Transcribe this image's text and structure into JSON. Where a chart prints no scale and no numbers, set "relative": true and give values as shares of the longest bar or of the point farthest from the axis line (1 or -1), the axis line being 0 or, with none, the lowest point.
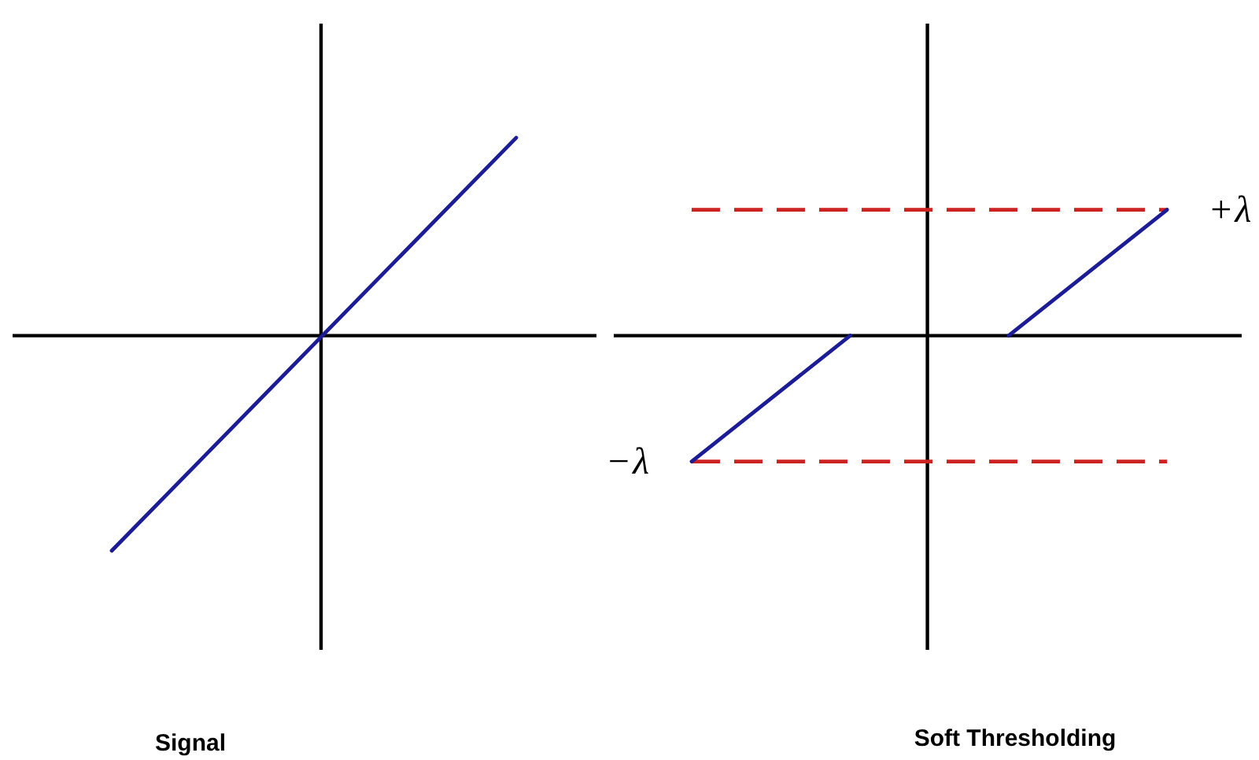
{
  "chart_data": [
    {
      "type": "line",
      "title": "Signal",
      "relative": true,
      "categories": [
        null,
        null
      ],
      "series": [
        {
          "color": "#1c1c96",
          "values": [
            -1,
            0.92
          ]
        }
      ]
    },
    {
      "type": "line",
      "title": "Soft Thresholding",
      "relative": true,
      "categories": [
        null,
        null,
        null,
        null
      ],
      "series": [
        {
          "color": "#1c1c96",
          "values": [
            -1,
            0,
            null,
            null
          ]
        },
        {
          "color": "#1c1c96",
          "values": [
            null,
            null,
            0,
            1
          ]
        },
        {
          "color": "#cc2222",
          "line_style": "dashed",
          "values": [
            1,
            1,
            1,
            1
          ]
        },
        {
          "color": "#cc2222",
          "line_style": "dashed",
          "values": [
            -1,
            -1,
            -1,
            -1
          ]
        }
      ],
      "annotations": [
        "+λ",
        "−λ"
      ]
    }
  ]
}
